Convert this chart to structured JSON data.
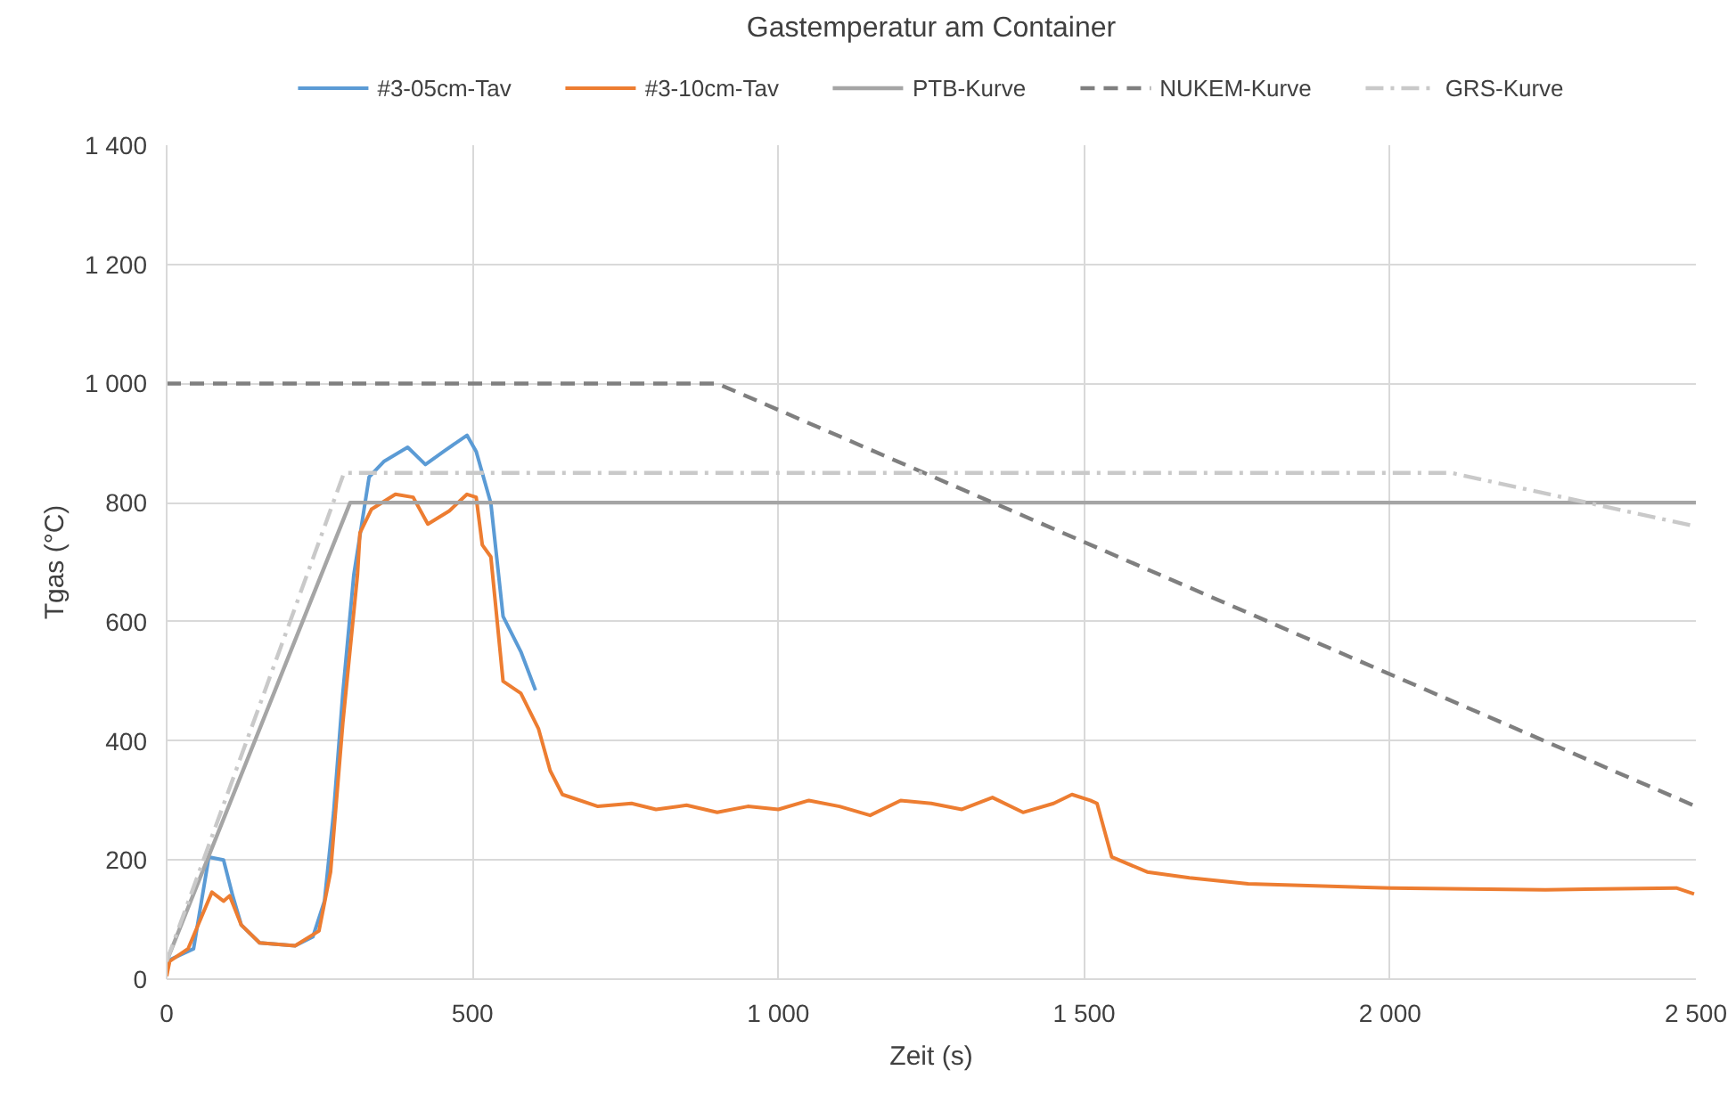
{
  "chart_data": {
    "type": "line",
    "title": "Gastemperatur am Container",
    "xlabel": "Zeit (s)",
    "ylabel": "Tgas (°C)",
    "xlim": [
      0,
      2500
    ],
    "ylim": [
      0,
      1400
    ],
    "xticks": [
      0,
      500,
      {
        "value": 1000,
        "label": "1 000"
      },
      {
        "value": 1500,
        "label": "1 500"
      },
      {
        "value": 2000,
        "label": "2 000"
      },
      {
        "value": 2500,
        "label": "2 500"
      }
    ],
    "yticks": [
      0,
      200,
      400,
      600,
      800,
      {
        "value": 1000,
        "label": "1 000"
      },
      {
        "value": 1200,
        "label": "1 200"
      },
      {
        "value": 1400,
        "label": "1 400"
      }
    ],
    "grid": true,
    "legend": "top",
    "marker": "none",
    "series": [
      {
        "name": "#3-05cm-Tav",
        "color": "#5b9bd5",
        "line_style": "solid",
        "x": [
          0,
          44,
          69,
          93,
          108,
          122,
          152,
          210,
          239,
          258,
          273,
          288,
          306,
          331,
          355,
          394,
          423,
          453,
          491,
          506,
          530,
          550,
          579,
          603
        ],
        "values": [
          30,
          51,
          205,
          200,
          140,
          91,
          61,
          56,
          71,
          131,
          280,
          480,
          679,
          843,
          869,
          893,
          864,
          886,
          913,
          886,
          799,
          609,
          550,
          485
        ]
      },
      {
        "name": "#3-10cm-Tav",
        "color": "#ed7d31",
        "line_style": "solid",
        "x": [
          0,
          5,
          35,
          74,
          93,
          103,
          122,
          152,
          210,
          249,
          268,
          288,
          312,
          316,
          335,
          374,
          403,
          427,
          462,
          491,
          506,
          516,
          530,
          550,
          579,
          608,
          627,
          647,
          705,
          760,
          800,
          850,
          900,
          950,
          1000,
          1050,
          1100,
          1150,
          1200,
          1250,
          1300,
          1350,
          1400,
          1450,
          1480,
          1510,
          1521,
          1545,
          1603,
          1672,
          1768,
          2001,
          2254,
          2468,
          2497
        ],
        "values": [
          5,
          30,
          51,
          146,
          131,
          140,
          91,
          61,
          56,
          81,
          180,
          430,
          679,
          749,
          789,
          814,
          809,
          764,
          786,
          814,
          809,
          729,
          709,
          500,
          480,
          420,
          350,
          310,
          290,
          295,
          285,
          292,
          280,
          290,
          285,
          300,
          290,
          275,
          300,
          295,
          285,
          305,
          280,
          295,
          310,
          300,
          295,
          205,
          180,
          170,
          160,
          153,
          150,
          153,
          143
        ]
      },
      {
        "name": "PTB-Kurve",
        "color": "#a5a5a5",
        "line_style": "solid",
        "x": [
          0,
          300,
          2500
        ],
        "values": [
          30,
          800,
          800
        ]
      },
      {
        "name": "NUKEM-Kurve",
        "color": "#7f7f7f",
        "line_style": "dashed",
        "x": [
          0,
          900,
          2500
        ],
        "values": [
          1000,
          1000,
          290
        ]
      },
      {
        "name": "GRS-Kurve",
        "color": "#c9c9c9",
        "line_style": "dashdot",
        "x": [
          0,
          290,
          2100,
          2500
        ],
        "values": [
          30,
          850,
          850,
          760
        ]
      }
    ]
  }
}
